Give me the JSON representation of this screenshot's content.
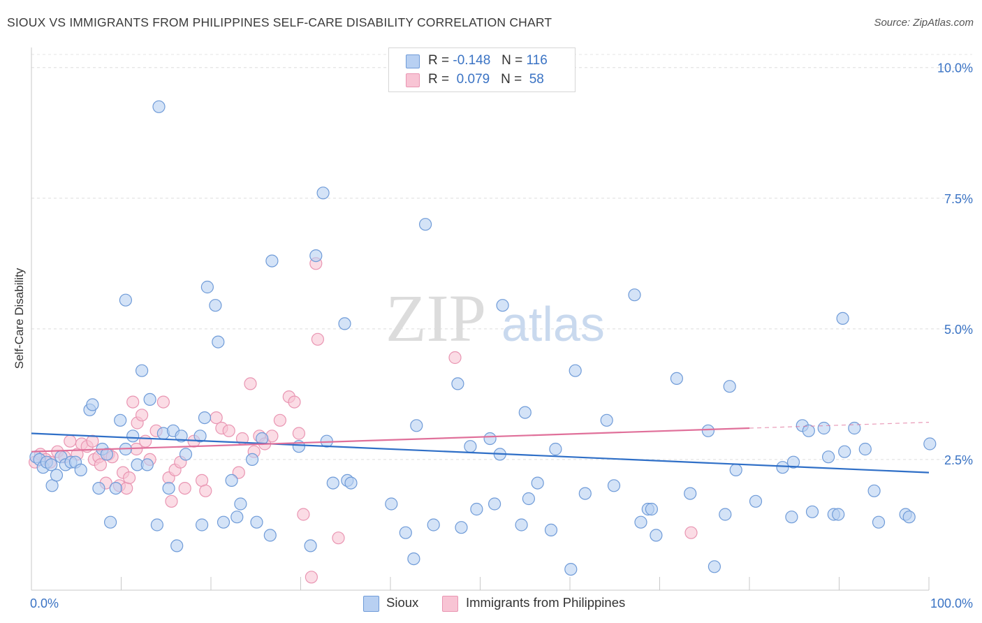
{
  "header": {
    "title": "SIOUX VS IMMIGRANTS FROM PHILIPPINES SELF-CARE DISABILITY CORRELATION CHART",
    "source": "Source: ZipAtlas.com"
  },
  "legend": {
    "rows": [
      {
        "r_label": "R =",
        "r_value": "-0.148",
        "n_label": "N =",
        "n_value": "116"
      },
      {
        "r_label": "R =",
        "r_value": "0.079",
        "n_label": "N =",
        "n_value": "58"
      }
    ]
  },
  "bottom_legend": {
    "sioux": "Sioux",
    "philippines": "Immigrants from Philippines"
  },
  "watermark": {
    "zip": "ZIP",
    "atlas": "atlas"
  },
  "colors": {
    "sioux_fill": "#b8d0f2",
    "sioux_stroke": "#6f9bd8",
    "sioux_line": "#2f6fc7",
    "phil_fill": "#f8c4d4",
    "phil_stroke": "#e995b2",
    "phil_line": "#e0709a",
    "accent_text": "#3a73c4"
  },
  "chart_data": {
    "type": "scatter",
    "title": "SIOUX VS IMMIGRANTS FROM PHILIPPINES SELF-CARE DISABILITY CORRELATION CHART",
    "xlabel": "",
    "ylabel": "Self-Care Disability",
    "xlim": [
      0,
      100
    ],
    "ylim": [
      0,
      10.25
    ],
    "x_tick_labels": [
      "0.0%",
      "100.0%"
    ],
    "y_ticks": [
      2.5,
      5.0,
      7.5,
      10.0
    ],
    "y_tick_labels": [
      "2.5%",
      "5.0%",
      "7.5%",
      "10.0%"
    ],
    "grid": "horizontal dashed",
    "legend_position": "top-center",
    "series": [
      {
        "name": "Sioux",
        "r": -0.148,
        "n": 116,
        "trend": {
          "x": [
            0,
            100
          ],
          "y": [
            3.0,
            2.25
          ]
        },
        "points": [
          [
            0.5,
            2.55
          ],
          [
            0.9,
            2.5
          ],
          [
            1.3,
            2.35
          ],
          [
            1.7,
            2.45
          ],
          [
            2.2,
            2.4
          ],
          [
            2.3,
            2.0
          ],
          [
            2.8,
            2.2
          ],
          [
            3.3,
            2.55
          ],
          [
            3.8,
            2.4
          ],
          [
            4.4,
            2.45
          ],
          [
            4.9,
            2.45
          ],
          [
            5.5,
            2.3
          ],
          [
            6.5,
            3.45
          ],
          [
            6.8,
            3.55
          ],
          [
            7.5,
            1.95
          ],
          [
            7.9,
            2.7
          ],
          [
            8.4,
            2.6
          ],
          [
            8.8,
            1.3
          ],
          [
            9.4,
            1.95
          ],
          [
            9.9,
            3.25
          ],
          [
            10.5,
            2.7
          ],
          [
            10.5,
            5.55
          ],
          [
            11.3,
            2.95
          ],
          [
            11.8,
            2.4
          ],
          [
            12.3,
            4.2
          ],
          [
            12.9,
            2.4
          ],
          [
            13.2,
            3.65
          ],
          [
            14.0,
            1.25
          ],
          [
            14.2,
            9.25
          ],
          [
            14.7,
            3.0
          ],
          [
            15.3,
            1.95
          ],
          [
            15.8,
            3.05
          ],
          [
            16.2,
            0.85
          ],
          [
            16.7,
            2.95
          ],
          [
            17.2,
            2.6
          ],
          [
            18.8,
            2.95
          ],
          [
            19.0,
            1.25
          ],
          [
            19.3,
            3.3
          ],
          [
            19.6,
            5.8
          ],
          [
            20.5,
            5.45
          ],
          [
            20.8,
            4.75
          ],
          [
            21.4,
            1.3
          ],
          [
            22.3,
            2.1
          ],
          [
            22.9,
            1.4
          ],
          [
            23.3,
            1.65
          ],
          [
            24.6,
            2.5
          ],
          [
            25.1,
            1.3
          ],
          [
            25.7,
            2.9
          ],
          [
            26.6,
            1.05
          ],
          [
            26.8,
            6.3
          ],
          [
            29.8,
            2.75
          ],
          [
            31.1,
            0.85
          ],
          [
            31.7,
            6.4
          ],
          [
            32.5,
            7.6
          ],
          [
            32.9,
            2.85
          ],
          [
            33.6,
            2.05
          ],
          [
            35.2,
            2.1
          ],
          [
            35.6,
            2.05
          ],
          [
            34.9,
            5.1
          ],
          [
            40.1,
            1.65
          ],
          [
            41.7,
            1.1
          ],
          [
            42.6,
            0.6
          ],
          [
            42.9,
            3.15
          ],
          [
            43.9,
            7.0
          ],
          [
            44.8,
            1.25
          ],
          [
            47.5,
            3.95
          ],
          [
            47.9,
            1.2
          ],
          [
            48.9,
            2.75
          ],
          [
            49.6,
            1.55
          ],
          [
            51.1,
            2.9
          ],
          [
            51.6,
            1.65
          ],
          [
            52.2,
            2.6
          ],
          [
            52.5,
            5.45
          ],
          [
            54.6,
            1.25
          ],
          [
            55.0,
            3.4
          ],
          [
            55.4,
            1.75
          ],
          [
            56.4,
            2.05
          ],
          [
            57.9,
            1.15
          ],
          [
            58.4,
            2.7
          ],
          [
            60.1,
            0.4
          ],
          [
            60.6,
            4.2
          ],
          [
            61.7,
            1.85
          ],
          [
            64.1,
            3.25
          ],
          [
            64.9,
            2.0
          ],
          [
            67.2,
            5.65
          ],
          [
            67.9,
            1.3
          ],
          [
            68.7,
            1.55
          ],
          [
            69.1,
            1.55
          ],
          [
            69.6,
            1.05
          ],
          [
            71.9,
            4.05
          ],
          [
            73.4,
            1.85
          ],
          [
            75.4,
            3.05
          ],
          [
            76.1,
            0.45
          ],
          [
            77.3,
            1.45
          ],
          [
            77.8,
            3.9
          ],
          [
            78.5,
            2.3
          ],
          [
            80.7,
            1.7
          ],
          [
            83.7,
            2.35
          ],
          [
            84.7,
            1.4
          ],
          [
            84.9,
            2.45
          ],
          [
            85.9,
            3.15
          ],
          [
            86.6,
            3.05
          ],
          [
            87.0,
            1.5
          ],
          [
            88.3,
            3.1
          ],
          [
            88.8,
            2.55
          ],
          [
            89.4,
            1.45
          ],
          [
            89.9,
            1.45
          ],
          [
            90.4,
            5.2
          ],
          [
            90.6,
            2.65
          ],
          [
            91.7,
            3.1
          ],
          [
            92.9,
            2.7
          ],
          [
            93.9,
            1.9
          ],
          [
            94.4,
            1.3
          ],
          [
            97.4,
            1.45
          ],
          [
            97.8,
            1.4
          ],
          [
            100.1,
            2.8
          ]
        ]
      },
      {
        "name": "Immigrants from Philippines",
        "r": 0.079,
        "n": 58,
        "trend": {
          "x": [
            0,
            80
          ],
          "y": [
            2.65,
            3.1
          ]
        },
        "points": [
          [
            0.4,
            2.45
          ],
          [
            1.0,
            2.6
          ],
          [
            1.6,
            2.5
          ],
          [
            2.1,
            2.45
          ],
          [
            2.9,
            2.65
          ],
          [
            3.7,
            2.55
          ],
          [
            4.3,
            2.85
          ],
          [
            5.1,
            2.6
          ],
          [
            5.6,
            2.8
          ],
          [
            6.2,
            2.75
          ],
          [
            6.8,
            2.85
          ],
          [
            7.0,
            2.5
          ],
          [
            7.5,
            2.55
          ],
          [
            7.7,
            2.4
          ],
          [
            8.3,
            2.05
          ],
          [
            8.6,
            2.6
          ],
          [
            9.0,
            2.55
          ],
          [
            9.8,
            2.0
          ],
          [
            10.2,
            2.25
          ],
          [
            10.6,
            1.95
          ],
          [
            10.9,
            2.15
          ],
          [
            11.3,
            3.6
          ],
          [
            11.7,
            2.7
          ],
          [
            11.8,
            3.2
          ],
          [
            12.3,
            3.35
          ],
          [
            12.7,
            2.85
          ],
          [
            13.2,
            2.5
          ],
          [
            13.9,
            3.05
          ],
          [
            14.7,
            3.6
          ],
          [
            15.3,
            2.15
          ],
          [
            15.6,
            1.7
          ],
          [
            16.0,
            2.3
          ],
          [
            16.6,
            2.45
          ],
          [
            17.1,
            1.95
          ],
          [
            18.1,
            2.85
          ],
          [
            19.0,
            2.1
          ],
          [
            19.4,
            1.9
          ],
          [
            20.6,
            3.3
          ],
          [
            21.2,
            3.1
          ],
          [
            22.0,
            3.05
          ],
          [
            23.1,
            2.25
          ],
          [
            23.5,
            2.9
          ],
          [
            24.4,
            3.95
          ],
          [
            24.8,
            2.65
          ],
          [
            25.4,
            2.95
          ],
          [
            26.0,
            2.8
          ],
          [
            26.8,
            2.95
          ],
          [
            27.7,
            3.25
          ],
          [
            28.7,
            3.7
          ],
          [
            29.3,
            3.6
          ],
          [
            29.8,
            3.0
          ],
          [
            30.3,
            1.45
          ],
          [
            31.7,
            6.25
          ],
          [
            31.9,
            4.8
          ],
          [
            34.2,
            1.0
          ],
          [
            47.2,
            4.45
          ],
          [
            73.5,
            1.1
          ],
          [
            31.2,
            0.25
          ]
        ]
      }
    ]
  }
}
